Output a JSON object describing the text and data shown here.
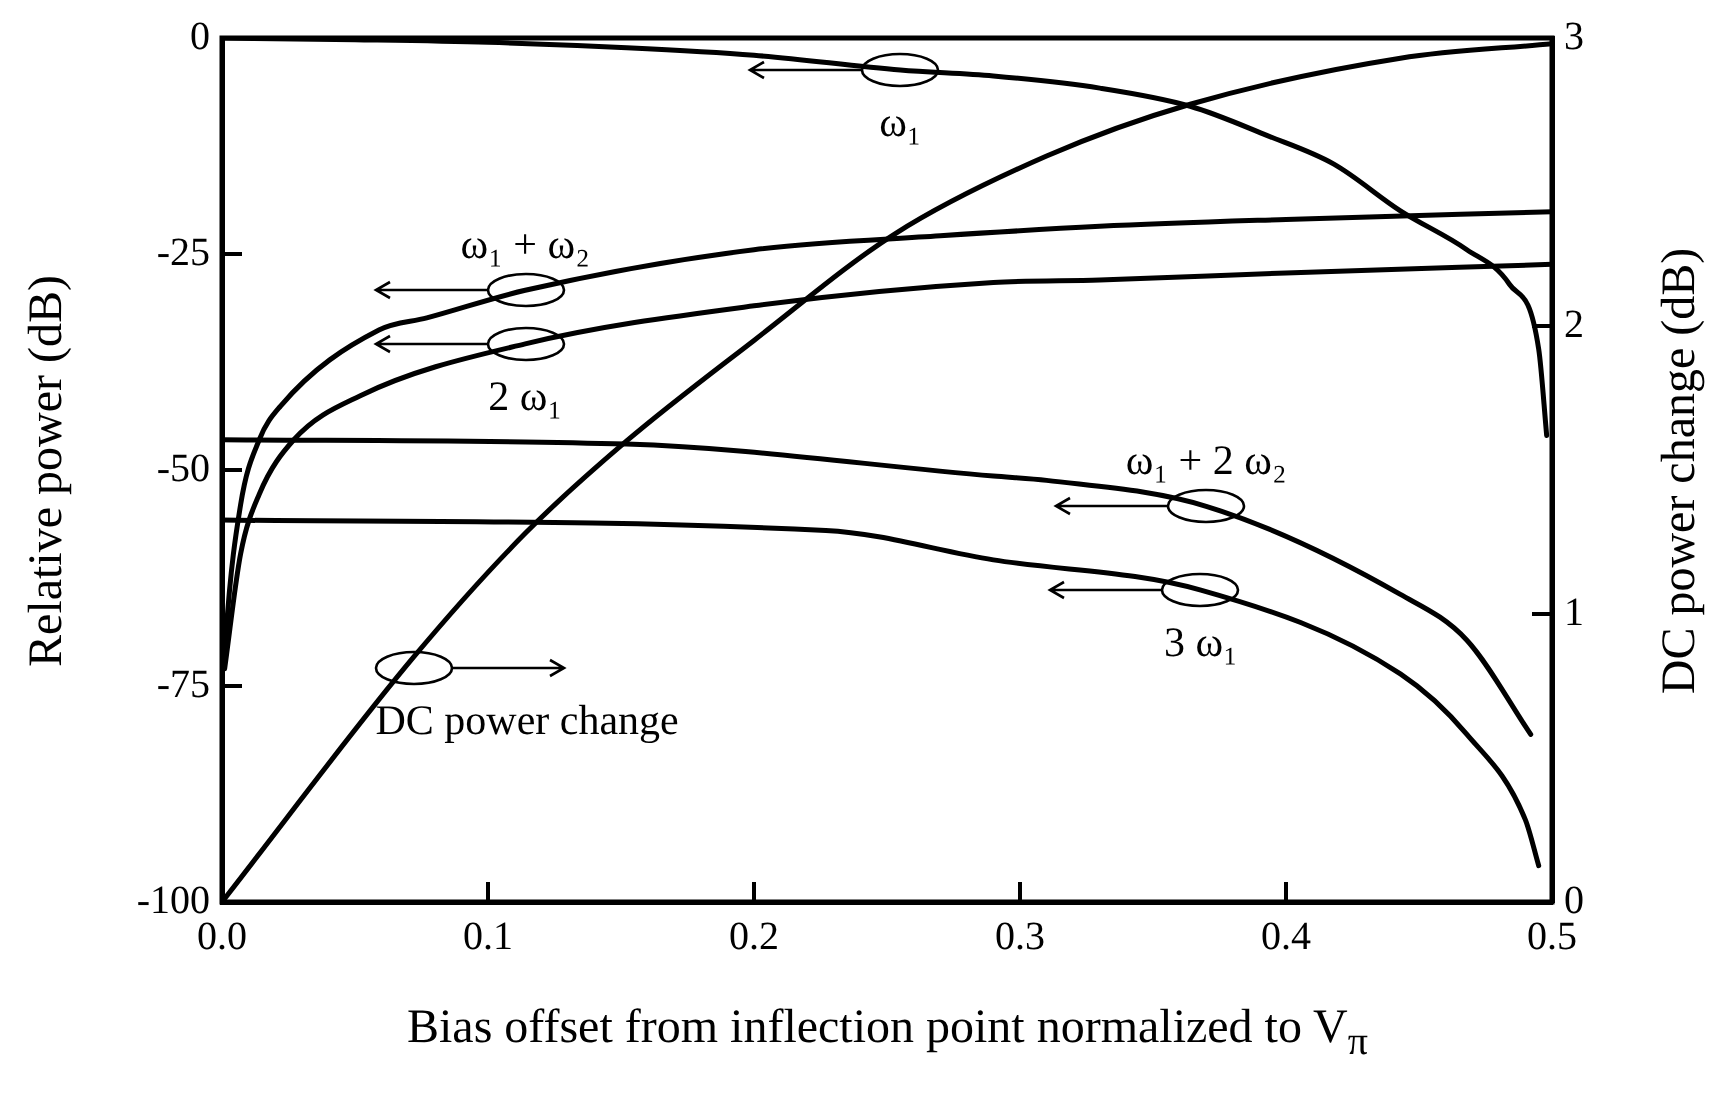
{
  "chart_data": {
    "type": "line",
    "xlabel": "Bias offset from inflection point normalized to V$_{π}$",
    "ylabel": "Relative power (dB)",
    "y2label": "DC power change (dB)",
    "xlim": [
      0,
      0.5
    ],
    "xticks": [
      {
        "value": 0,
        "label": "0.0"
      },
      {
        "value": 0.1,
        "label": "0.1"
      },
      {
        "value": 0.2,
        "label": "0.2"
      },
      {
        "value": 0.3,
        "label": "0.3"
      },
      {
        "value": 0.4,
        "label": "0.4"
      },
      {
        "value": 0.5,
        "label": "0.5"
      }
    ],
    "ylim": [
      -100,
      0
    ],
    "yticks": [
      -100,
      -75,
      -50,
      -25,
      0
    ],
    "y2lim": [
      0,
      3
    ],
    "y2ticks": [
      0,
      1,
      2,
      3
    ],
    "grid": false,
    "legend": false,
    "marker": "none",
    "line_style": "solid",
    "series": [
      {
        "color": "#000000",
        "x": [
          0,
          0.05,
          0.1,
          0.15,
          0.2,
          0.255,
          0.29,
          0.33,
          0.364,
          0.393,
          0.418,
          0.443,
          0.468,
          0.484,
          0.495,
          0.498
        ],
        "values": [
          0,
          -0.2,
          -0.5,
          -1.1,
          -2,
          -3.7,
          -4.4,
          -5.8,
          -7.9,
          -11.3,
          -14.6,
          -20,
          -24.5,
          -28.5,
          -36,
          -46
        ]
      },
      {
        "color": "#000000",
        "x": [
          0.001,
          0.0015,
          0.007,
          0.014,
          0.022,
          0.059,
          0.077,
          0.114,
          0.2,
          0.27,
          0.33,
          0.4,
          0.5
        ],
        "values": [
          -72,
          -69,
          -54,
          -46.5,
          -42.6,
          -33.8,
          -32.4,
          -29.2,
          -24.5,
          -22.9,
          -21.8,
          -21,
          -20.1
        ]
      },
      {
        "color": "#000000",
        "x": [
          0.001,
          0.007,
          0.014,
          0.027,
          0.052,
          0.114,
          0.2,
          0.29,
          0.33,
          0.4,
          0.5
        ],
        "values": [
          -73,
          -59.7,
          -52.8,
          -46.5,
          -41.4,
          -35.4,
          -31,
          -28.3,
          -28,
          -27.2,
          -26.2
        ]
      },
      {
        "color": "#000000",
        "x": [
          0,
          0.152,
          0.29,
          0.31,
          0.37,
          0.443,
          0.468,
          0.492
        ],
        "values": [
          -46.5,
          -47,
          -50.7,
          -51.2,
          -54.2,
          -64.4,
          -69.7,
          -80.6
        ]
      },
      {
        "color": "#000000",
        "x": [
          0,
          0.227,
          0.29,
          0.368,
          0.443,
          0.468,
          0.49,
          0.495
        ],
        "values": [
          -55.8,
          -57,
          -60.4,
          -63.9,
          -73.6,
          -80.6,
          -90.5,
          -95.8
        ]
      },
      {
        "color": "#000000",
        "axis": "y2",
        "x": [
          0,
          0.072,
          0.114,
          0.152,
          0.2,
          0.253,
          0.31,
          0.364,
          0.443,
          0.5
        ],
        "values": [
          0,
          0.85,
          1.28,
          1.6,
          1.95,
          2.32,
          2.59,
          2.77,
          2.93,
          2.98
        ]
      }
    ],
    "annotations": [
      {
        "text": "ω₁",
        "x": 0.255,
        "y": -3.7
      },
      {
        "text": "ω₁ + ω₂",
        "x": 0.114,
        "y": -29.2
      },
      {
        "text": "2 ω₁",
        "x": 0.114,
        "y": -35.4
      },
      {
        "text": "ω₁ + 2 ω₂",
        "x": 0.37,
        "y": -54.2
      },
      {
        "text": "3 ω₁",
        "x": 0.368,
        "y": -63.9
      },
      {
        "text": "DC power change",
        "x": 0.072,
        "y": -73
      }
    ]
  }
}
